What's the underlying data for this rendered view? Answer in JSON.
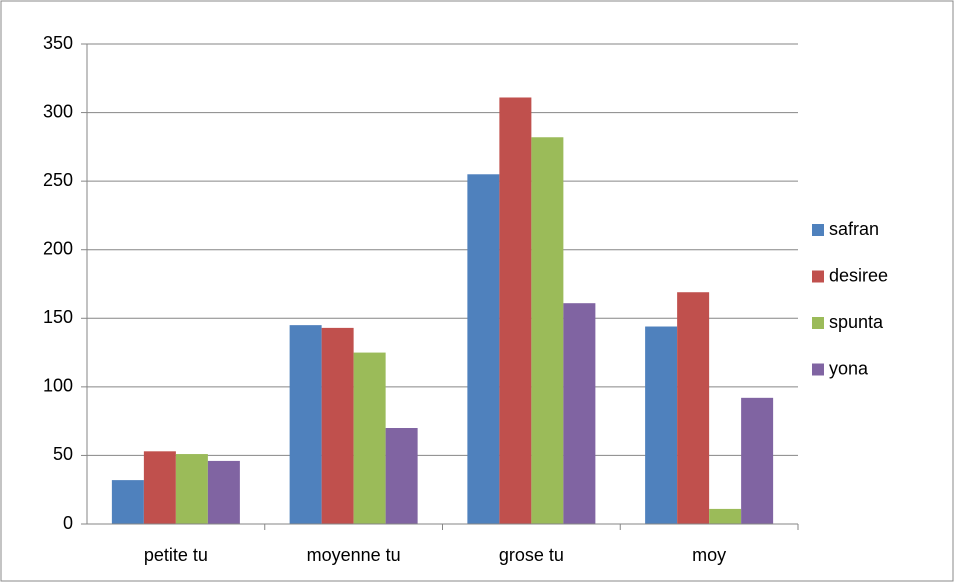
{
  "chart_data": {
    "type": "bar",
    "categories": [
      "petite tu",
      "moyenne tu",
      "grose tu",
      "moy"
    ],
    "series": [
      {
        "name": "safran",
        "color": "#4f81bd",
        "values": [
          32,
          145,
          255,
          144
        ]
      },
      {
        "name": "desiree",
        "color": "#c0504d",
        "values": [
          53,
          143,
          311,
          169
        ]
      },
      {
        "name": "spunta",
        "color": "#9bbb59",
        "values": [
          51,
          125,
          282,
          11
        ]
      },
      {
        "name": "yona",
        "color": "#8064a2",
        "values": [
          46,
          70,
          161,
          92
        ]
      }
    ],
    "ylim": [
      0,
      350
    ],
    "yticks": [
      0,
      50,
      100,
      150,
      200,
      250,
      300,
      350
    ],
    "grid": true,
    "legend": "right"
  }
}
